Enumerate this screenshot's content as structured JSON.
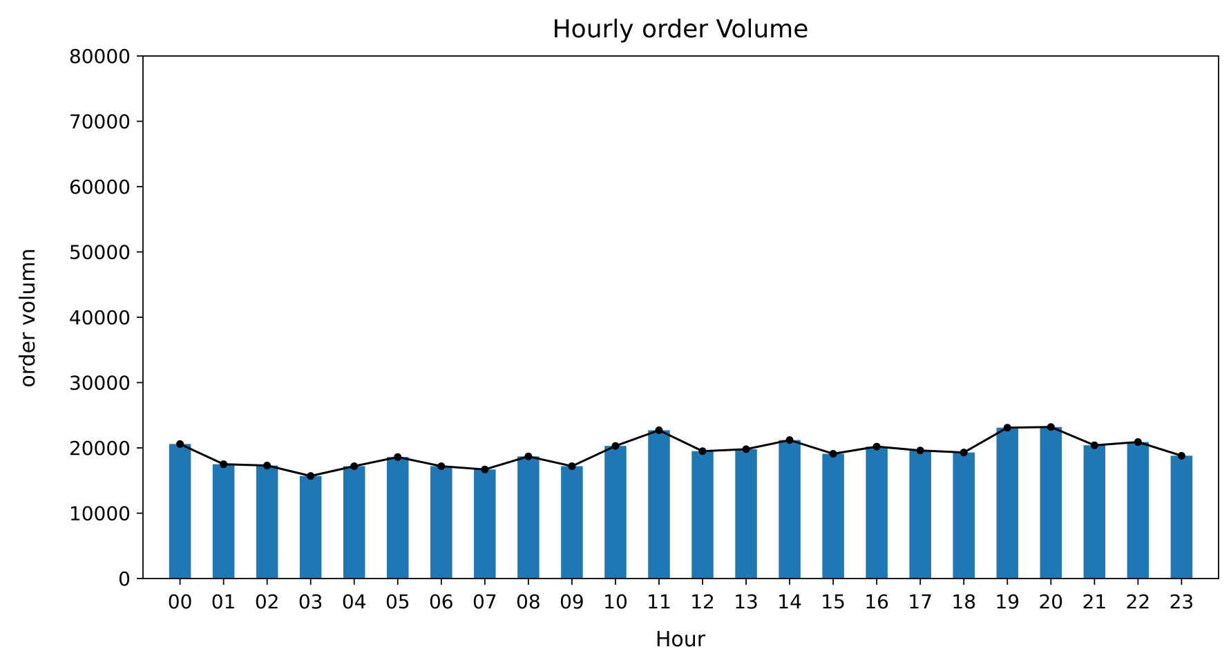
{
  "chart_data": {
    "type": "bar",
    "title": "Hourly order Volume",
    "xlabel": "Hour",
    "ylabel": "order volumn",
    "ylim": [
      0,
      80000
    ],
    "yticks": [
      0,
      10000,
      20000,
      30000,
      40000,
      50000,
      60000,
      70000,
      80000
    ],
    "grid": false,
    "legend": "none",
    "categories": [
      "00",
      "01",
      "02",
      "03",
      "04",
      "05",
      "06",
      "07",
      "08",
      "09",
      "10",
      "11",
      "12",
      "13",
      "14",
      "15",
      "16",
      "17",
      "18",
      "19",
      "20",
      "21",
      "22",
      "23"
    ],
    "values": [
      20600,
      17500,
      17300,
      15700,
      17200,
      18600,
      17200,
      16700,
      18700,
      17200,
      20300,
      22700,
      19500,
      19800,
      21200,
      19100,
      20200,
      19600,
      19300,
      23100,
      23200,
      20400,
      20900,
      18800
    ],
    "overlay_line": true,
    "colors": {
      "bar": "#1f77b4",
      "line": "#000000",
      "marker": "#000000",
      "axes": "#000000"
    }
  }
}
